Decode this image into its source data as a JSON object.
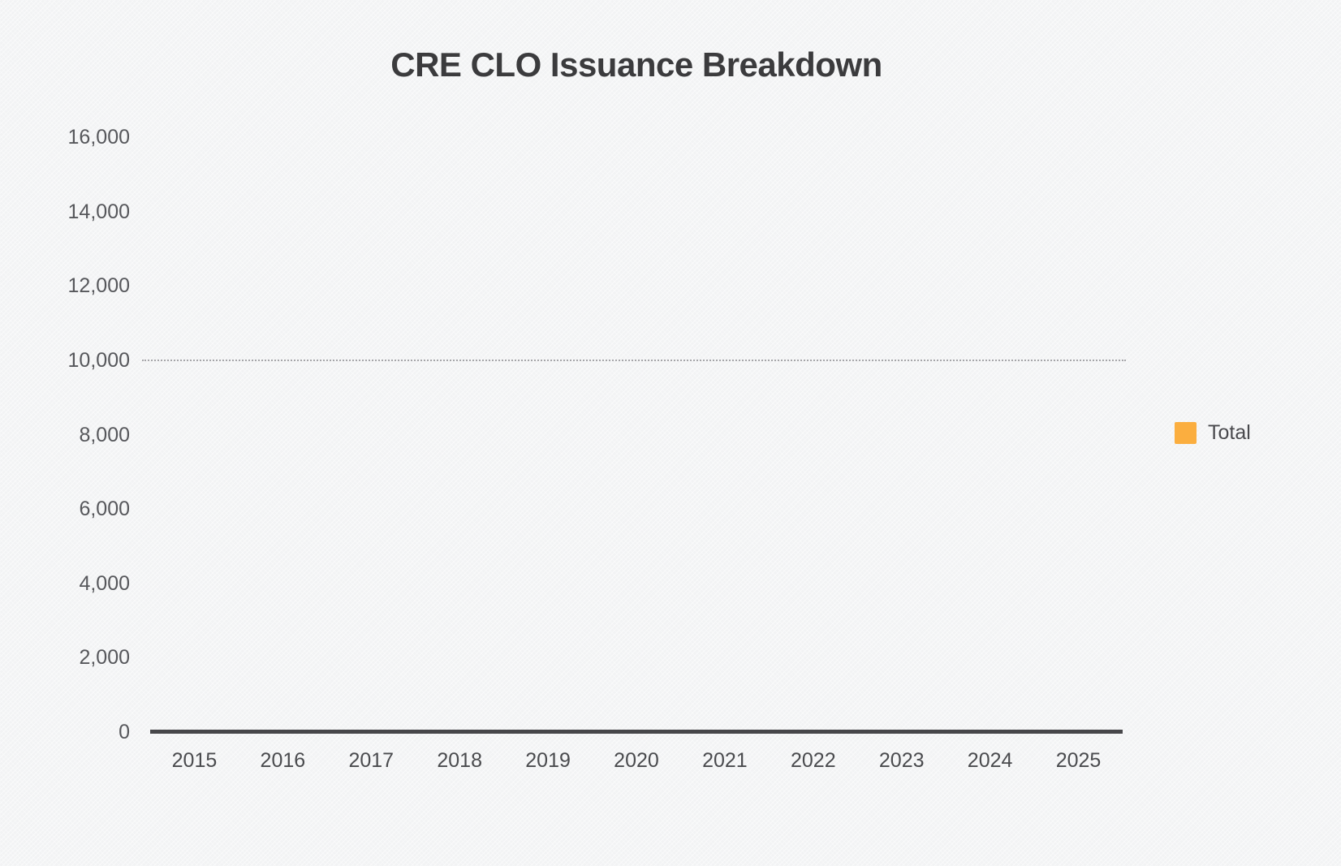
{
  "chart_data": {
    "type": "bar",
    "title": "CRE CLO Issuance Breakdown",
    "categories": [
      "2015",
      "2016",
      "2017",
      "2018",
      "2019",
      "2020",
      "2021",
      "2022",
      "2023",
      "2024",
      "2025"
    ],
    "series": [
      {
        "name": "Total",
        "color": "#FBAE3F",
        "values": [
          0,
          0,
          0,
          0,
          0,
          0,
          0,
          0,
          0,
          0,
          0
        ]
      }
    ],
    "xlabel": "",
    "ylabel": "",
    "ylim": [
      0,
      16000
    ],
    "y_tick_step": 2000,
    "y_tick_labels": [
      "16,000",
      "14,000",
      "12,000",
      "10,000",
      "8,000",
      "6,000",
      "4,000",
      "2,000",
      "0"
    ],
    "grid": "off",
    "reference_line": {
      "value": 10000,
      "style": "dotted",
      "color": "#a6a6a9"
    },
    "legend_position": "right",
    "axis_line_color": "#47474a",
    "title_color": "#3b3b3d"
  },
  "legend": {
    "items": [
      {
        "label": "Total",
        "color": "#FBAE3F"
      }
    ]
  }
}
